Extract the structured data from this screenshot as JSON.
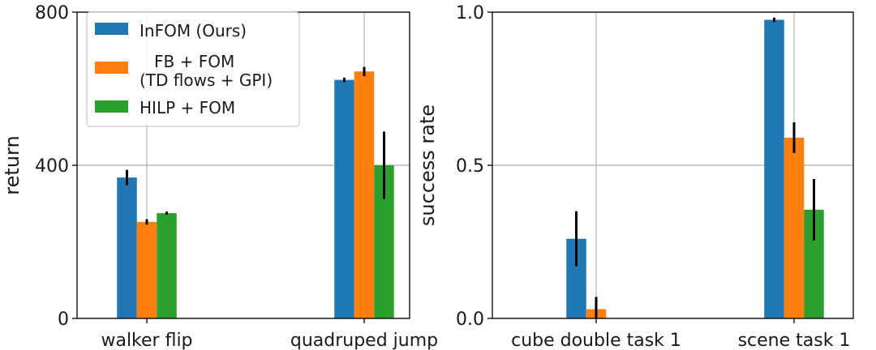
{
  "chart_data": [
    {
      "type": "bar",
      "ylabel": "return",
      "xlabel": "",
      "ylim": [
        0,
        800
      ],
      "yticks": [
        "0",
        "400",
        "800"
      ],
      "ytick_values": [
        0,
        400,
        800
      ],
      "grid": true,
      "categories": [
        "walker flip",
        "quadruped jump"
      ],
      "series": [
        {
          "name": "InFOM (Ours)",
          "color": "#1f77b4",
          "values": [
            368,
            623
          ],
          "errors": [
            20,
            6
          ]
        },
        {
          "name": "FB + FOM (TD flows + GPI)",
          "color": "#ff7f0e",
          "values": [
            252,
            645
          ],
          "errors": [
            7,
            12
          ]
        },
        {
          "name": "HILP + FOM",
          "color": "#2ca02c",
          "values": [
            275,
            400
          ],
          "errors": [
            4,
            88
          ]
        }
      ],
      "legend": {
        "placement": "top-left",
        "entries": [
          {
            "label": "InFOM (Ours)",
            "color": "#1f77b4"
          },
          {
            "label": "FB + FOM",
            "label_line2": "(TD flows + GPI)",
            "color": "#ff7f0e"
          },
          {
            "label": "HILP + FOM",
            "color": "#2ca02c"
          }
        ]
      }
    },
    {
      "type": "bar",
      "ylabel": "success rate",
      "xlabel": "",
      "ylim": [
        0,
        1.0
      ],
      "yticks": [
        "0.0",
        "0.5",
        "1.0"
      ],
      "ytick_values": [
        0,
        0.5,
        1.0
      ],
      "grid": true,
      "categories": [
        "cube double task 1",
        "scene task 1"
      ],
      "series": [
        {
          "name": "InFOM (Ours)",
          "color": "#1f77b4",
          "values": [
            0.26,
            0.975
          ],
          "errors": [
            0.09,
            0.007
          ]
        },
        {
          "name": "FB + FOM (TD flows + GPI)",
          "color": "#ff7f0e",
          "values": [
            0.03,
            0.59
          ],
          "errors": [
            0.04,
            0.05
          ]
        },
        {
          "name": "HILP + FOM",
          "color": "#2ca02c",
          "values": [
            0.0,
            0.355
          ],
          "errors": [
            0.0,
            0.1
          ]
        }
      ]
    }
  ]
}
